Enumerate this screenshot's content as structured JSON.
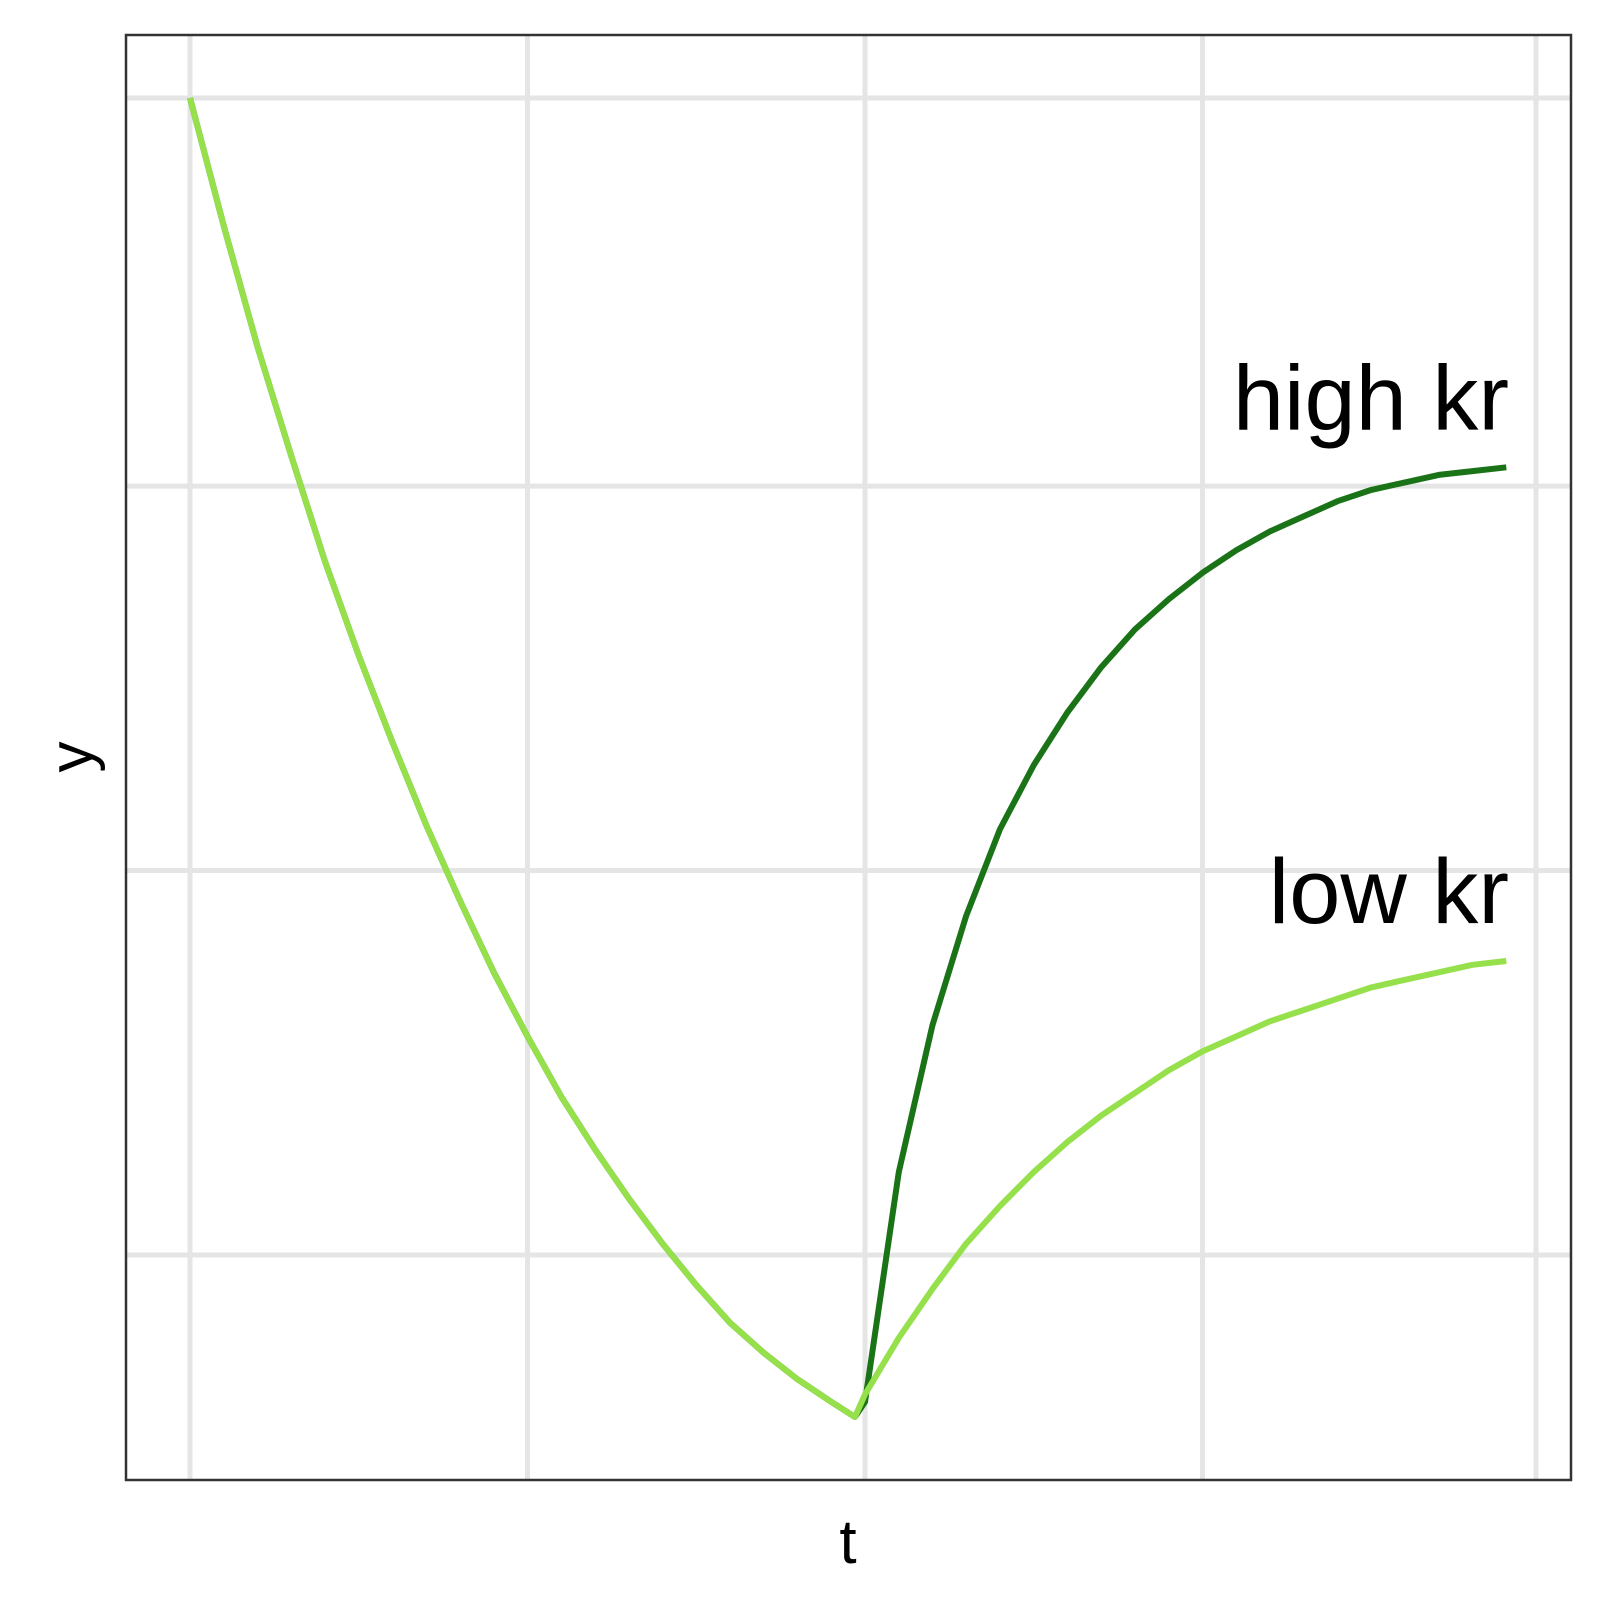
{
  "chart_data": {
    "type": "line",
    "title": "",
    "xlabel": "t",
    "ylabel": "y",
    "xlim": [
      0,
      4.2
    ],
    "ylim": [
      0,
      3.6
    ],
    "grid": true,
    "legend": "none",
    "colors": {
      "high": "#1a7317",
      "low": "#95e04b",
      "grid": "#e5e5e5",
      "frame": "#333333"
    },
    "series": [
      {
        "name": "high kr",
        "color": "#1a7317",
        "x": [
          0,
          0.1,
          0.2,
          0.3,
          0.4,
          0.5,
          0.6,
          0.7,
          0.8,
          0.9,
          1.0,
          1.1,
          1.2,
          1.3,
          1.4,
          1.5,
          1.6,
          1.7,
          1.8,
          1.9,
          1.97,
          2.0,
          2.1,
          2.2,
          2.3,
          2.4,
          2.5,
          2.6,
          2.7,
          2.8,
          2.9,
          3.0,
          3.1,
          3.2,
          3.3,
          3.4,
          3.5,
          3.6,
          3.7,
          3.8,
          3.9
        ],
        "y": [
          3.5,
          3.16,
          2.84,
          2.55,
          2.27,
          2.02,
          1.79,
          1.57,
          1.37,
          1.18,
          1.01,
          0.85,
          0.71,
          0.58,
          0.46,
          0.35,
          0.25,
          0.17,
          0.1,
          0.04,
          0.0,
          0.04,
          0.65,
          1.04,
          1.33,
          1.56,
          1.73,
          1.87,
          1.99,
          2.09,
          2.17,
          2.24,
          2.3,
          2.35,
          2.39,
          2.43,
          2.46,
          2.48,
          2.5,
          2.51,
          2.52
        ]
      },
      {
        "name": "low kr",
        "color": "#95e04b",
        "x": [
          0,
          0.1,
          0.2,
          0.3,
          0.4,
          0.5,
          0.6,
          0.7,
          0.8,
          0.9,
          1.0,
          1.1,
          1.2,
          1.3,
          1.4,
          1.5,
          1.6,
          1.7,
          1.8,
          1.9,
          1.97,
          2.0,
          2.1,
          2.2,
          2.3,
          2.4,
          2.5,
          2.6,
          2.7,
          2.8,
          2.9,
          3.0,
          3.1,
          3.2,
          3.3,
          3.4,
          3.5,
          3.6,
          3.7,
          3.8,
          3.9
        ],
        "y": [
          3.5,
          3.16,
          2.84,
          2.55,
          2.27,
          2.02,
          1.79,
          1.57,
          1.37,
          1.18,
          1.01,
          0.85,
          0.71,
          0.58,
          0.46,
          0.35,
          0.25,
          0.17,
          0.1,
          0.04,
          0.0,
          0.06,
          0.21,
          0.34,
          0.46,
          0.56,
          0.65,
          0.73,
          0.8,
          0.86,
          0.92,
          0.97,
          1.01,
          1.05,
          1.08,
          1.11,
          1.14,
          1.16,
          1.18,
          1.2,
          1.21
        ]
      }
    ],
    "annotations": [
      {
        "text": "high kr",
        "series": "high kr"
      },
      {
        "text": "low kr",
        "series": "low kr"
      }
    ]
  }
}
